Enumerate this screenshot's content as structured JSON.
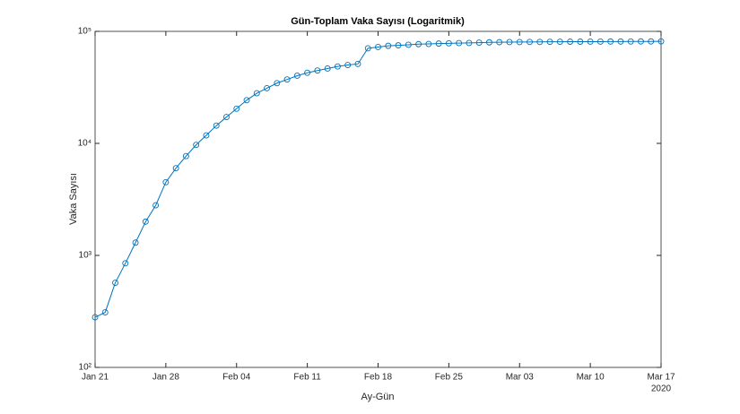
{
  "chart_data": {
    "type": "line",
    "title": "Gün-Toplam Vaka Sayısı (Logaritmik)",
    "x_label": "Ay-Gün",
    "y_label": "Vaka Sayısı",
    "x_year_label": "2020",
    "x": [
      "2020-01-21",
      "2020-01-22",
      "2020-01-23",
      "2020-01-24",
      "2020-01-25",
      "2020-01-26",
      "2020-01-27",
      "2020-01-28",
      "2020-01-29",
      "2020-01-30",
      "2020-01-31",
      "2020-02-01",
      "2020-02-02",
      "2020-02-03",
      "2020-02-04",
      "2020-02-05",
      "2020-02-06",
      "2020-02-07",
      "2020-02-08",
      "2020-02-09",
      "2020-02-10",
      "2020-02-11",
      "2020-02-12",
      "2020-02-13",
      "2020-02-14",
      "2020-02-15",
      "2020-02-16",
      "2020-02-17",
      "2020-02-18",
      "2020-02-19",
      "2020-02-20",
      "2020-02-21",
      "2020-02-22",
      "2020-02-23",
      "2020-02-24",
      "2020-02-25",
      "2020-02-26",
      "2020-02-27",
      "2020-02-28",
      "2020-02-29",
      "2020-03-01",
      "2020-03-02",
      "2020-03-03",
      "2020-03-04",
      "2020-03-05",
      "2020-03-06",
      "2020-03-07",
      "2020-03-08",
      "2020-03-09",
      "2020-03-10",
      "2020-03-11",
      "2020-03-12",
      "2020-03-13",
      "2020-03-14",
      "2020-03-15",
      "2020-03-16",
      "2020-03-17"
    ],
    "series": [
      {
        "name": "Vaka Sayısı",
        "color": "#0072bd",
        "values": [
          280,
          310,
          570,
          850,
          1300,
          2000,
          2800,
          4500,
          6000,
          7700,
          9700,
          11800,
          14400,
          17200,
          20400,
          24300,
          28000,
          31100,
          34500,
          37200,
          40200,
          42700,
          44700,
          46600,
          48600,
          50100,
          51200,
          70600,
          72500,
          74300,
          75000,
          75900,
          76900,
          77200,
          77800,
          78200,
          78600,
          78800,
          79300,
          79800,
          80000,
          80200,
          80300,
          80400,
          80500,
          80700,
          80800,
          80900,
          80900,
          81000,
          81000,
          81100,
          81100,
          81200,
          81300,
          81300,
          81400
        ]
      }
    ],
    "xlim": [
      "2020-01-21",
      "2020-03-17"
    ],
    "xticks": [
      {
        "value": "2020-01-21",
        "label": "Jan 21"
      },
      {
        "value": "2020-01-28",
        "label": "Jan 28"
      },
      {
        "value": "2020-02-04",
        "label": "Feb 04"
      },
      {
        "value": "2020-02-11",
        "label": "Feb 11"
      },
      {
        "value": "2020-02-18",
        "label": "Feb 18"
      },
      {
        "value": "2020-02-25",
        "label": "Feb 25"
      },
      {
        "value": "2020-03-03",
        "label": "Mar 03"
      },
      {
        "value": "2020-03-10",
        "label": "Mar 10"
      },
      {
        "value": "2020-03-17",
        "label": "Mar 17"
      }
    ],
    "ylim": [
      100,
      100000
    ],
    "y_scale": "log",
    "yticks": [
      {
        "value": 100,
        "label": "10²"
      },
      {
        "value": 1000,
        "label": "10³"
      },
      {
        "value": 10000,
        "label": "10⁴"
      },
      {
        "value": 100000,
        "label": "10⁵"
      }
    ],
    "grid": false,
    "marker": "circle"
  }
}
